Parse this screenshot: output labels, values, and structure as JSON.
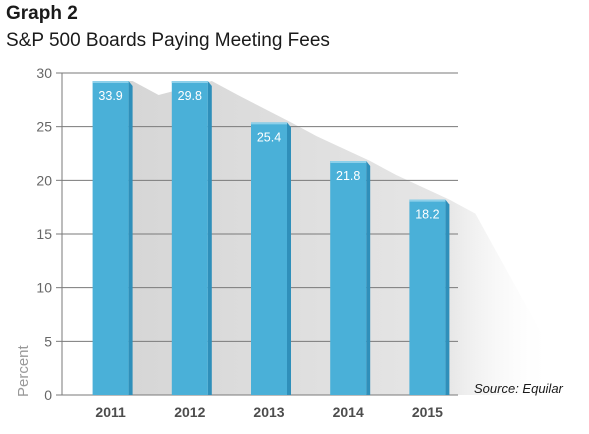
{
  "header": {
    "label": "Graph 2",
    "title": "S&P 500 Boards Paying Meeting Fees"
  },
  "chart_data": {
    "type": "bar",
    "categories": [
      "2011",
      "2012",
      "2013",
      "2014",
      "2015"
    ],
    "values": [
      33.9,
      29.8,
      25.4,
      21.8,
      18.2
    ],
    "data_labels": [
      "33.9",
      "29.8",
      "25.4",
      "21.8",
      "18.2"
    ],
    "ylabel": "Percent",
    "xlabel": "",
    "ylim": [
      0,
      30
    ],
    "yticks": [
      "0",
      "5",
      "10",
      "15",
      "20",
      "25",
      "30"
    ],
    "grid": true,
    "source": "Source: Equilar",
    "colors": {
      "bar": "#4ab0d8",
      "bar_side": "#2f8fba",
      "bar_top": "#8dd0ea",
      "shadow": "#e2e2e2",
      "grid": "#7a7a7a"
    }
  }
}
